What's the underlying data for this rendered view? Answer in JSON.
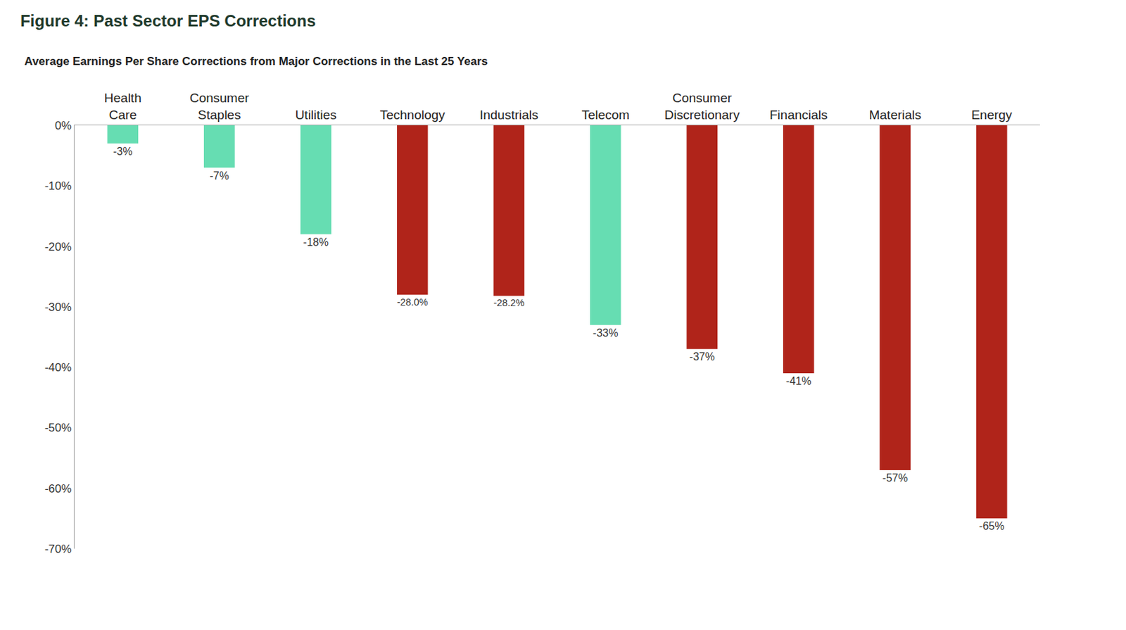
{
  "chart_data": {
    "type": "bar",
    "title": "Figure 4: Past Sector EPS Corrections",
    "subtitle": "Average Earnings Per Share Corrections from Major Corrections in the Last 25 Years",
    "categories": [
      "Health Care",
      "Consumer Staples",
      "Utilities",
      "Technology",
      "Industrials",
      "Telecom",
      "Consumer Discretionary",
      "Financials",
      "Materials",
      "Energy"
    ],
    "values": [
      -3,
      -7,
      -18,
      -28.0,
      -28.2,
      -33,
      -37,
      -41,
      -57,
      -65
    ],
    "value_labels": [
      "-3%",
      "-7%",
      "-18%",
      "-28.0%",
      "-28.2%",
      "-33%",
      "-37%",
      "-41%",
      "-57%",
      "-65%"
    ],
    "colors": [
      "#66ddb2",
      "#66ddb2",
      "#66ddb2",
      "#b0241a",
      "#b0241a",
      "#66ddb2",
      "#b0241a",
      "#b0241a",
      "#b0241a",
      "#b0241a"
    ],
    "data_labels": true,
    "grid": false,
    "ylim": [
      -70,
      0
    ],
    "yticks": [
      {
        "value": 0,
        "label": "0%"
      },
      {
        "value": -10,
        "label": "-10%"
      },
      {
        "value": -20,
        "label": "-20%"
      },
      {
        "value": -30,
        "label": "-30%"
      },
      {
        "value": -40,
        "label": "-40%"
      },
      {
        "value": -50,
        "label": "-50%"
      },
      {
        "value": -60,
        "label": "-60%"
      },
      {
        "value": -70,
        "label": "-70%"
      }
    ]
  }
}
